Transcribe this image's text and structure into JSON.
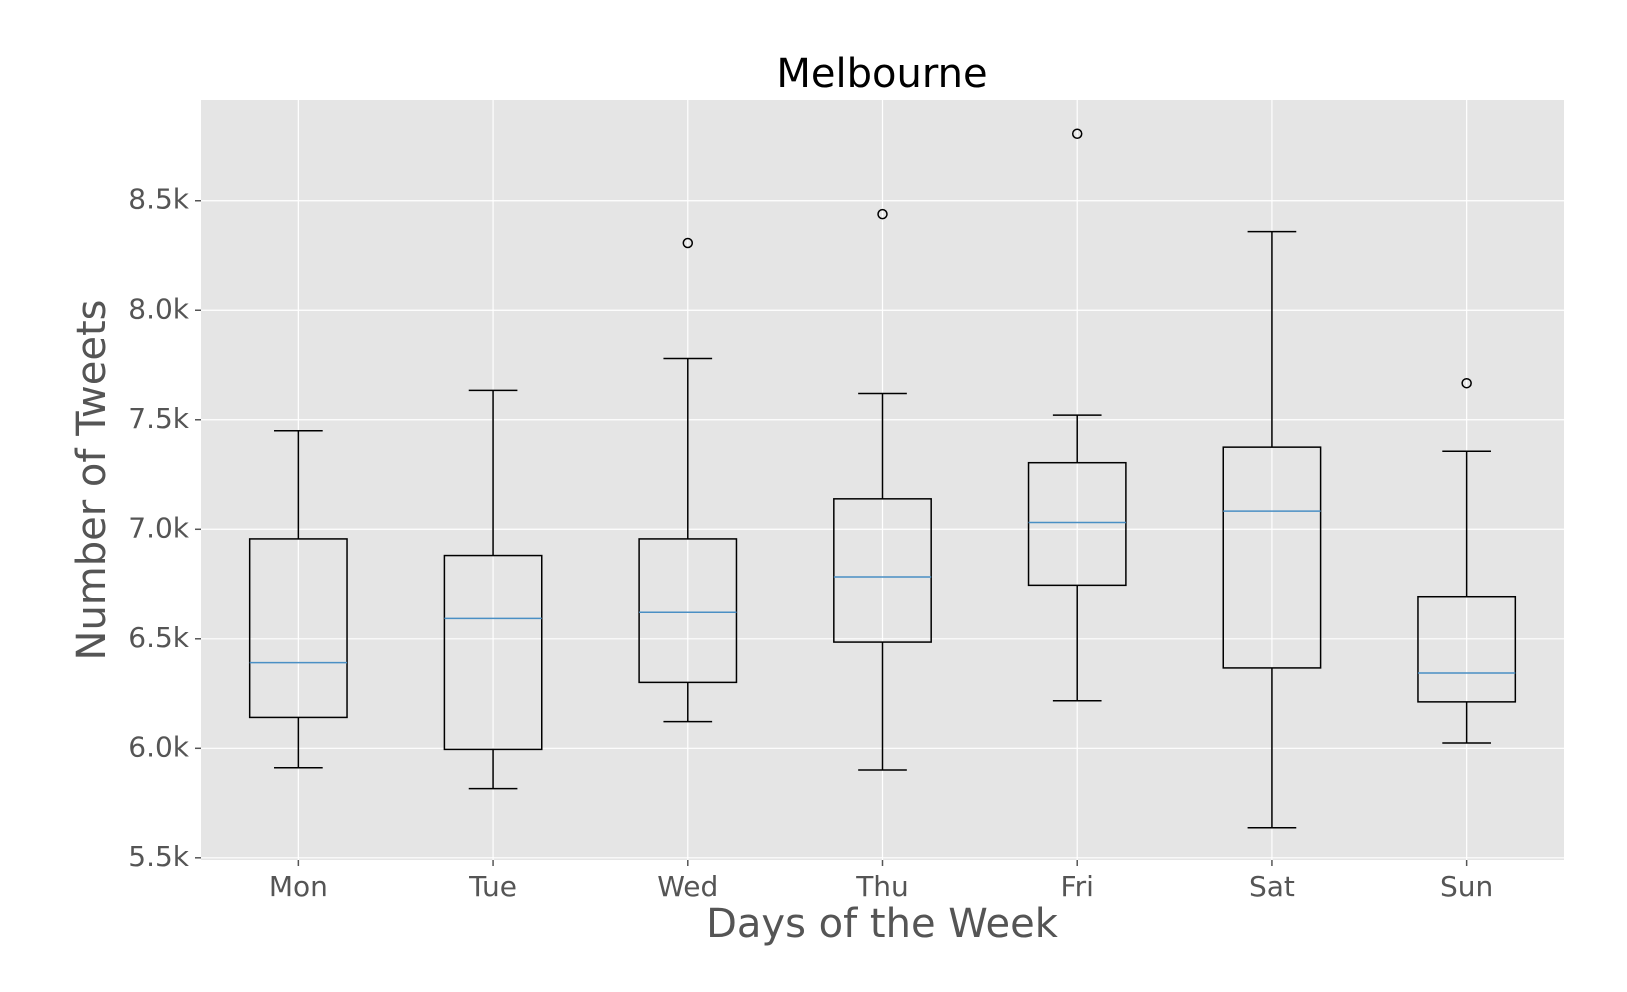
{
  "chart_data": {
    "type": "box",
    "title": "Melbourne",
    "x_label": "Days of the Week",
    "y_label": "Number of Tweets",
    "categories": [
      "Mon",
      "Tue",
      "Wed",
      "Thu",
      "Fri",
      "Sat",
      "Sun"
    ],
    "boxes": [
      {
        "whisker_low": 5911,
        "q1": 6141,
        "median": 6391,
        "q3": 6956,
        "whisker_high": 7450,
        "outliers": []
      },
      {
        "whisker_low": 5816,
        "q1": 5995,
        "median": 6593,
        "q3": 6880,
        "whisker_high": 7634,
        "outliers": []
      },
      {
        "whisker_low": 6122,
        "q1": 6301,
        "median": 6621,
        "q3": 6956,
        "whisker_high": 7780,
        "outliers": [
          8307
        ]
      },
      {
        "whisker_low": 5901,
        "q1": 6485,
        "median": 6782,
        "q3": 7139,
        "whisker_high": 7620,
        "outliers": [
          8439
        ]
      },
      {
        "whisker_low": 6217,
        "q1": 6744,
        "median": 7031,
        "q3": 7304,
        "whisker_high": 7521,
        "outliers": [
          8806
        ]
      },
      {
        "whisker_low": 5637,
        "q1": 6367,
        "median": 7083,
        "q3": 7375,
        "whisker_high": 8359,
        "outliers": []
      },
      {
        "whisker_low": 6024,
        "q1": 6212,
        "median": 6344,
        "q3": 6692,
        "whisker_high": 7356,
        "outliers": [
          7667
        ]
      }
    ],
    "ylim": [
      5490,
      8960
    ],
    "yticks": [
      {
        "value": 5500,
        "label": "5.5k"
      },
      {
        "value": 6000,
        "label": "6.0k"
      },
      {
        "value": 6500,
        "label": "6.5k"
      },
      {
        "value": 7000,
        "label": "7.0k"
      },
      {
        "value": 7500,
        "label": "7.5k"
      },
      {
        "value": 8000,
        "label": "8.0k"
      },
      {
        "value": 8500,
        "label": "8.5k"
      }
    ],
    "grid": true,
    "box_color": "#000000",
    "median_color": "#4a8fc4",
    "background": "#e5e5e5"
  }
}
